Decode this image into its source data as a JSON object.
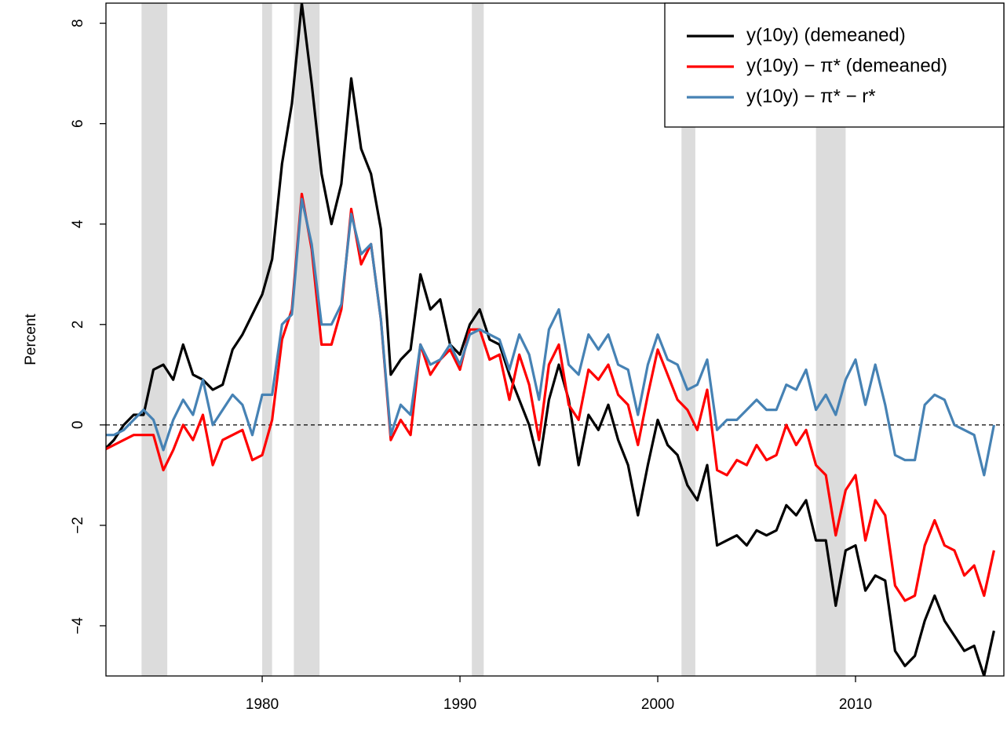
{
  "chart_data": {
    "type": "line",
    "y_label": "Percent",
    "xlim": [
      1972.1,
      2017.5
    ],
    "ylim": [
      -5,
      8.4
    ],
    "xticks": [
      1980,
      1990,
      2000,
      2010
    ],
    "yticks": [
      {
        "value": -4,
        "label": "−4"
      },
      {
        "value": -2,
        "label": "−2"
      },
      0,
      2,
      4,
      6,
      8
    ],
    "hline": 0,
    "legend": "top-right",
    "shade_color": "#dcdcdc",
    "shaded_regions": [
      [
        1973.9,
        1975.2
      ],
      [
        1980.0,
        1980.5
      ],
      [
        1981.6,
        1982.9
      ],
      [
        1990.6,
        1991.2
      ],
      [
        2001.2,
        2001.9
      ],
      [
        2008.0,
        2009.5
      ]
    ],
    "x": [
      1972,
      1972.5,
      1973,
      1973.5,
      1974,
      1974.5,
      1975,
      1975.5,
      1976,
      1976.5,
      1977,
      1977.5,
      1978,
      1978.5,
      1979,
      1979.5,
      1980,
      1980.5,
      1981,
      1981.5,
      1982,
      1982.5,
      1983,
      1983.5,
      1984,
      1984.5,
      1985,
      1985.5,
      1986,
      1986.5,
      1987,
      1987.5,
      1988,
      1988.5,
      1989,
      1989.5,
      1990,
      1990.5,
      1991,
      1991.5,
      1992,
      1992.5,
      1993,
      1993.5,
      1994,
      1994.5,
      1995,
      1995.5,
      1996,
      1996.5,
      1997,
      1997.5,
      1998,
      1998.5,
      1999,
      1999.5,
      2000,
      2000.5,
      2001,
      2001.5,
      2002,
      2002.5,
      2003,
      2003.5,
      2004,
      2004.5,
      2005,
      2005.5,
      2006,
      2006.5,
      2007,
      2007.5,
      2008,
      2008.5,
      2009,
      2009.5,
      2010,
      2010.5,
      2011,
      2011.5,
      2012,
      2012.5,
      2013,
      2013.5,
      2014,
      2014.5,
      2015,
      2015.5,
      2016,
      2016.5,
      2017
    ],
    "series": [
      {
        "name": "y(10y) (demeaned)",
        "color": "#000000",
        "values": [
          -0.5,
          -0.3,
          0.0,
          0.2,
          0.2,
          1.1,
          1.2,
          0.9,
          1.6,
          1.0,
          0.9,
          0.7,
          0.8,
          1.5,
          1.8,
          2.2,
          2.6,
          3.3,
          5.2,
          6.4,
          8.4,
          6.8,
          5.0,
          4.0,
          4.8,
          6.9,
          5.5,
          5.0,
          3.9,
          1.0,
          1.3,
          1.5,
          3.0,
          2.3,
          2.5,
          1.6,
          1.4,
          2.0,
          2.3,
          1.7,
          1.6,
          1.0,
          0.5,
          0.0,
          -0.8,
          0.5,
          1.2,
          0.5,
          -0.8,
          0.2,
          -0.1,
          0.4,
          -0.3,
          -0.8,
          -1.8,
          -0.8,
          0.1,
          -0.4,
          -0.6,
          -1.2,
          -1.5,
          -0.8,
          -2.4,
          -2.3,
          -2.2,
          -2.4,
          -2.1,
          -2.2,
          -2.1,
          -1.6,
          -1.8,
          -1.5,
          -2.3,
          -2.3,
          -3.6,
          -2.5,
          -2.4,
          -3.3,
          -3.0,
          -3.1,
          -4.5,
          -4.8,
          -4.6,
          -3.9,
          -3.4,
          -3.9,
          -4.2,
          -4.5,
          -4.4,
          -5.0,
          -4.1
        ]
      },
      {
        "name": "y(10y) − π* (demeaned)",
        "color": "#ff0000",
        "values": [
          -0.5,
          -0.4,
          -0.3,
          -0.2,
          -0.2,
          -0.2,
          -0.9,
          -0.5,
          0.0,
          -0.3,
          0.2,
          -0.8,
          -0.3,
          -0.2,
          -0.1,
          -0.7,
          -0.6,
          0.1,
          1.7,
          2.3,
          4.6,
          3.5,
          1.6,
          1.6,
          2.3,
          4.3,
          3.2,
          3.6,
          2.1,
          -0.3,
          0.1,
          -0.2,
          1.6,
          1.0,
          1.3,
          1.5,
          1.1,
          1.9,
          1.9,
          1.3,
          1.4,
          0.5,
          1.4,
          0.8,
          -0.3,
          1.2,
          1.6,
          0.4,
          0.1,
          1.1,
          0.9,
          1.2,
          0.6,
          0.4,
          -0.4,
          0.6,
          1.5,
          1.0,
          0.5,
          0.3,
          -0.1,
          0.7,
          -0.9,
          -1.0,
          -0.7,
          -0.8,
          -0.4,
          -0.7,
          -0.6,
          0.0,
          -0.4,
          -0.1,
          -0.8,
          -1.0,
          -2.2,
          -1.3,
          -1.0,
          -2.3,
          -1.5,
          -1.8,
          -3.2,
          -3.5,
          -3.4,
          -2.4,
          -1.9,
          -2.4,
          -2.5,
          -3.0,
          -2.8,
          -3.4,
          -2.5
        ]
      },
      {
        "name": "y(10y) − π* − r*",
        "color": "#4682b4",
        "values": [
          -0.2,
          -0.2,
          -0.1,
          0.1,
          0.3,
          0.1,
          -0.5,
          0.1,
          0.5,
          0.2,
          0.9,
          0.0,
          0.3,
          0.6,
          0.4,
          -0.2,
          0.6,
          0.6,
          2.0,
          2.2,
          4.5,
          3.6,
          2.0,
          2.0,
          2.4,
          4.2,
          3.4,
          3.6,
          2.1,
          -0.2,
          0.4,
          0.2,
          1.6,
          1.2,
          1.3,
          1.6,
          1.2,
          1.8,
          1.9,
          1.8,
          1.7,
          1.1,
          1.8,
          1.4,
          0.5,
          1.9,
          2.3,
          1.2,
          1.0,
          1.8,
          1.5,
          1.8,
          1.2,
          1.1,
          0.2,
          1.2,
          1.8,
          1.3,
          1.2,
          0.7,
          0.8,
          1.3,
          -0.1,
          0.1,
          0.1,
          0.3,
          0.5,
          0.3,
          0.3,
          0.8,
          0.7,
          1.1,
          0.3,
          0.6,
          0.2,
          0.9,
          1.3,
          0.4,
          1.2,
          0.4,
          -0.6,
          -0.7,
          -0.7,
          0.4,
          0.6,
          0.5,
          0.0,
          -0.1,
          -0.2,
          -1.0,
          0.0
        ]
      }
    ]
  }
}
